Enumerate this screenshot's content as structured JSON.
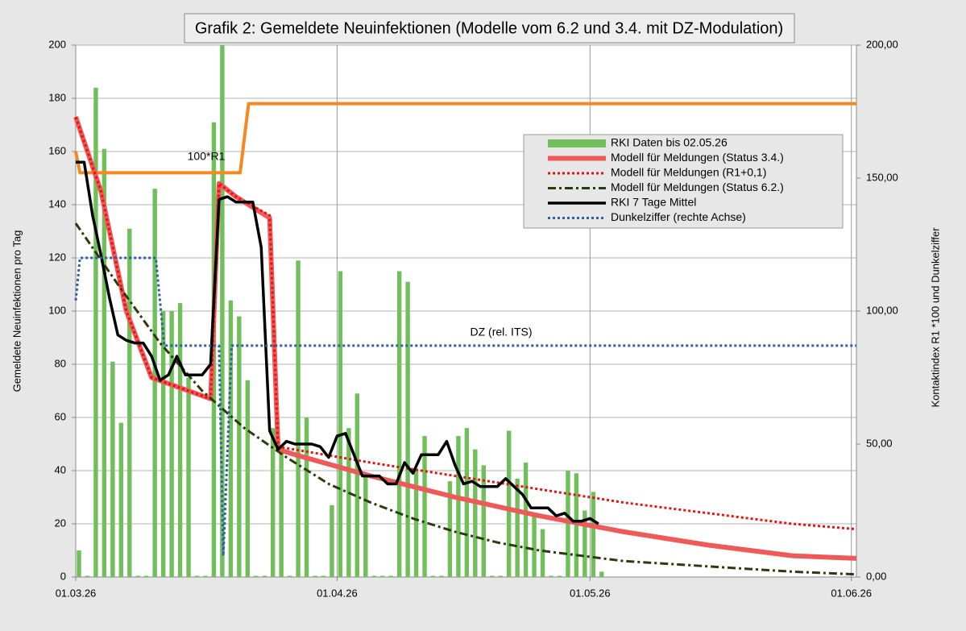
{
  "chart_data": {
    "type": "combo",
    "title": "Grafik 2: Gemeldete Neuinfektionen (Modelle vom 6.2 und 3.4. mit DZ-Modulation)",
    "y_label": "Gemeldete Neuinfektionen pro Tag",
    "y2_label": "Kontaktindex R1 *100 und Dunkelziffer",
    "xlim": [
      0,
      92.6
    ],
    "xticks": [
      {
        "value": 0,
        "label": "01.03.26"
      },
      {
        "value": 31,
        "label": "01.04.26"
      },
      {
        "value": 61,
        "label": "01.05.26"
      },
      {
        "value": 92,
        "label": "01.06.26"
      }
    ],
    "ylim": [
      0,
      200
    ],
    "yticks": [
      0,
      20,
      40,
      60,
      80,
      100,
      120,
      140,
      160,
      180,
      200
    ],
    "y2lim": [
      0,
      200
    ],
    "y2ticks": [
      {
        "value": 0,
        "label": "0,00"
      },
      {
        "value": 50,
        "label": "50,00"
      },
      {
        "value": 100,
        "label": "100,00"
      },
      {
        "value": 150,
        "label": "150,00"
      },
      {
        "value": 200,
        "label": "200,00"
      }
    ],
    "grid": true,
    "legend": "upper right",
    "series": [
      {
        "name": "RKI Daten bis 02.05.26",
        "color": "#70bf5a",
        "kind": "bar",
        "x": [
          0,
          1,
          2,
          3,
          4,
          5,
          6,
          7,
          8,
          9,
          10,
          11,
          12,
          13,
          14,
          15,
          16,
          17,
          18,
          19,
          20,
          21,
          22,
          23,
          24,
          25,
          26,
          27,
          28,
          29,
          30,
          31,
          32,
          33,
          34,
          35,
          36,
          37,
          38,
          39,
          40,
          41,
          42,
          43,
          44,
          45,
          46,
          47,
          48,
          49,
          50,
          51,
          52,
          53,
          54,
          55,
          56,
          57,
          58,
          59,
          60,
          61,
          62
        ],
        "values": [
          10,
          0,
          184,
          161,
          81,
          58,
          131,
          0,
          0,
          146,
          100,
          100,
          103,
          75,
          0,
          0,
          171,
          200,
          104,
          98,
          74,
          0,
          0,
          56,
          48,
          0,
          119,
          60,
          0,
          0,
          27,
          115,
          56,
          69,
          38,
          0,
          0,
          0,
          115,
          111,
          40,
          53,
          0,
          0,
          36,
          53,
          56,
          48,
          42,
          0,
          0,
          55,
          37,
          43,
          23,
          18,
          0,
          0,
          40,
          39,
          25,
          32,
          2
        ]
      },
      {
        "name": "Modell für Meldungen (Status 3.4.)",
        "color": "#ee5a5a",
        "kind": "solid",
        "width": 6,
        "x": [
          0,
          3,
          6,
          9,
          16,
          17,
          19,
          23,
          24,
          26,
          35,
          45,
          55,
          65,
          75,
          85,
          92.6
        ],
        "values": [
          173,
          145,
          100,
          75,
          67,
          148,
          143,
          135,
          48,
          46,
          38,
          30,
          23,
          17,
          12,
          8,
          7
        ]
      },
      {
        "name": "Modell für Meldungen (R1+0,1)",
        "color": "#e8120e",
        "kind": "dot",
        "width": 3,
        "x": [
          0,
          3,
          6,
          9,
          16,
          17,
          19,
          23,
          24,
          35,
          45,
          55,
          65,
          75,
          85,
          92.6
        ],
        "values": [
          173,
          145,
          100,
          75,
          67,
          148,
          143,
          136,
          49,
          43,
          38,
          33,
          28,
          24,
          20,
          18
        ]
      },
      {
        "name": "Modell für Meldungen (Status 6.2.)",
        "color": "#2f3a0c",
        "kind": "dashdot",
        "width": 3,
        "x": [
          0,
          5,
          10,
          15,
          20,
          25,
          30,
          35,
          40,
          45,
          50,
          55,
          60,
          65,
          70,
          75,
          80,
          85,
          92.6
        ],
        "values": [
          133,
          110,
          88,
          70,
          56,
          45,
          35,
          28,
          22,
          17,
          13,
          10,
          8,
          6,
          5,
          4,
          3,
          2,
          1
        ]
      },
      {
        "name": "RKI 7 Tage Mittel",
        "color": "#000000",
        "kind": "solid",
        "width": 3.5,
        "x": [
          0,
          1,
          2,
          3,
          4,
          5,
          6,
          7,
          8,
          9,
          10,
          11,
          12,
          13,
          14,
          15,
          16,
          17,
          18,
          19,
          20,
          21,
          22,
          23,
          24,
          25,
          26,
          27,
          28,
          29,
          30,
          31,
          32,
          33,
          34,
          35,
          36,
          37,
          38,
          39,
          40,
          41,
          42,
          43,
          44,
          45,
          46,
          47,
          48,
          49,
          50,
          51,
          52,
          53,
          54,
          55,
          56,
          57,
          58,
          59,
          60,
          61,
          62
        ],
        "values": [
          156,
          156,
          136,
          121,
          105,
          91,
          89,
          88,
          88,
          83,
          74,
          76,
          83,
          76,
          76,
          76,
          80,
          142,
          143,
          141,
          141,
          141,
          124,
          55,
          48,
          51,
          50,
          50,
          50,
          49,
          45,
          53,
          54,
          46,
          38,
          38,
          38,
          35,
          35,
          43,
          39,
          46,
          46,
          46,
          51,
          42,
          35,
          36,
          34,
          34,
          34,
          37,
          34,
          31,
          26,
          26,
          26,
          23,
          24,
          21,
          21,
          22,
          20
        ]
      },
      {
        "name": "Dunkelziffer (rechte Achse)",
        "color": "#2e5fa8",
        "kind": "dot",
        "width": 3,
        "axis": "y2",
        "x": [
          0,
          0.5,
          9.5,
          10.5,
          17,
          17.5,
          18.5,
          92.6
        ],
        "values": [
          104,
          120,
          120,
          87,
          87,
          8,
          87,
          87
        ]
      }
    ],
    "r1_line": {
      "label": "100*R1",
      "color": "#f5891f",
      "width": 4,
      "x": [
        0,
        0.5,
        19.5,
        20.5,
        92.6
      ],
      "values": [
        160,
        152,
        152,
        178,
        178
      ]
    },
    "annotations": [
      {
        "text": "DZ (rel. ITS)"
      }
    ]
  }
}
